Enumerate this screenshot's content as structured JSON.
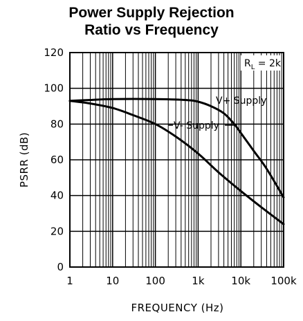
{
  "chart_data": {
    "type": "line",
    "title_line1": "Power Supply Rejection",
    "title_line2": "Ratio vs Frequency",
    "xlabel": "FREQUENCY (Hz)",
    "ylabel": "PSRR (dB)",
    "x_scale": "log",
    "xlim": [
      1,
      100000
    ],
    "ylim": [
      0,
      120
    ],
    "x_ticks": [
      1,
      10,
      100,
      1000,
      10000,
      100000
    ],
    "x_tick_labels": [
      "1",
      "10",
      "100",
      "1k",
      "10k",
      "100k"
    ],
    "y_ticks": [
      0,
      20,
      40,
      60,
      80,
      100,
      120
    ],
    "y_tick_labels": [
      "0",
      "20",
      "40",
      "60",
      "80",
      "100",
      "120"
    ],
    "grid": true,
    "condition_label": {
      "main": "R",
      "sub": "L",
      "rest": " = 2k"
    },
    "series": [
      {
        "name": "V+ Supply",
        "x": [
          1,
          3,
          10,
          100,
          500,
          1000,
          2000,
          4000,
          7000,
          10000,
          20000,
          40000,
          100000
        ],
        "y": [
          93,
          93.5,
          94,
          94,
          93.5,
          92.5,
          90,
          86,
          80,
          75,
          65,
          55,
          39
        ]
      },
      {
        "name": "V- Supply",
        "x": [
          1,
          3,
          10,
          30,
          100,
          300,
          1000,
          3000,
          10000,
          30000,
          100000
        ],
        "y": [
          93,
          91.5,
          89,
          85,
          80,
          73,
          63.5,
          53,
          42.5,
          33.5,
          24
        ]
      }
    ]
  }
}
